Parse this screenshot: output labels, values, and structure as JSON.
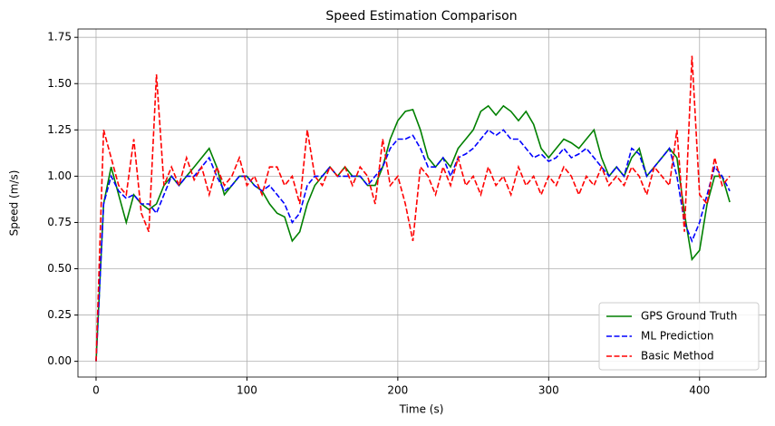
{
  "chart_data": {
    "type": "line",
    "title": "Speed Estimation Comparison",
    "x_label": "Time (s)",
    "y_label": "Speed (m/s)",
    "x": [
      0,
      5,
      10,
      15,
      20,
      25,
      30,
      35,
      40,
      45,
      50,
      55,
      60,
      65,
      70,
      75,
      80,
      85,
      90,
      95,
      100,
      105,
      110,
      115,
      120,
      125,
      130,
      135,
      140,
      145,
      150,
      155,
      160,
      165,
      170,
      175,
      180,
      185,
      190,
      195,
      200,
      205,
      210,
      215,
      220,
      225,
      230,
      235,
      240,
      245,
      250,
      255,
      260,
      265,
      270,
      275,
      280,
      285,
      290,
      295,
      300,
      305,
      310,
      315,
      320,
      325,
      330,
      335,
      340,
      345,
      350,
      355,
      360,
      365,
      370,
      375,
      380,
      385,
      390,
      395,
      400,
      405,
      410,
      415,
      420
    ],
    "series": [
      {
        "name": "GPS Ground Truth",
        "color": "#008000",
        "linestyle": "solid",
        "values": [
          0,
          0.85,
          1.05,
          0.9,
          0.75,
          0.9,
          0.85,
          0.82,
          0.85,
          0.95,
          1.0,
          0.95,
          1.0,
          1.05,
          1.1,
          1.15,
          1.05,
          0.9,
          0.95,
          1.0,
          1.0,
          0.95,
          0.92,
          0.85,
          0.8,
          0.78,
          0.65,
          0.7,
          0.85,
          0.95,
          1.0,
          1.05,
          1.0,
          1.05,
          1.0,
          1.0,
          0.95,
          0.95,
          1.05,
          1.2,
          1.3,
          1.35,
          1.36,
          1.25,
          1.1,
          1.05,
          1.1,
          1.05,
          1.15,
          1.2,
          1.25,
          1.35,
          1.38,
          1.33,
          1.38,
          1.35,
          1.3,
          1.35,
          1.28,
          1.15,
          1.1,
          1.15,
          1.2,
          1.18,
          1.15,
          1.2,
          1.25,
          1.1,
          1.0,
          1.05,
          1.0,
          1.1,
          1.15,
          1.0,
          1.05,
          1.1,
          1.15,
          1.1,
          0.8,
          0.55,
          0.6,
          0.85,
          1.0,
          1.0,
          0.86
        ]
      },
      {
        "name": "ML Prediction",
        "color": "#0000ff",
        "linestyle": "dashed",
        "values": [
          0,
          0.85,
          1.0,
          0.92,
          0.88,
          0.9,
          0.85,
          0.85,
          0.8,
          0.9,
          1.0,
          0.95,
          1.0,
          1.0,
          1.05,
          1.1,
          1.0,
          0.92,
          0.95,
          1.0,
          1.0,
          0.95,
          0.92,
          0.95,
          0.9,
          0.85,
          0.75,
          0.8,
          0.95,
          1.0,
          1.0,
          1.05,
          1.0,
          1.0,
          1.0,
          1.0,
          0.95,
          1.0,
          1.05,
          1.15,
          1.2,
          1.2,
          1.22,
          1.15,
          1.05,
          1.05,
          1.1,
          1.0,
          1.1,
          1.12,
          1.15,
          1.2,
          1.25,
          1.22,
          1.25,
          1.2,
          1.2,
          1.15,
          1.1,
          1.12,
          1.08,
          1.1,
          1.15,
          1.1,
          1.12,
          1.15,
          1.1,
          1.05,
          1.0,
          1.05,
          1.0,
          1.15,
          1.12,
          1.0,
          1.05,
          1.1,
          1.15,
          1.0,
          0.75,
          0.65,
          0.75,
          0.9,
          1.05,
          1.0,
          0.92
        ]
      },
      {
        "name": "Basic Method",
        "color": "#ff0000",
        "linestyle": "dashed",
        "values": [
          0,
          1.25,
          1.1,
          0.95,
          0.9,
          1.2,
          0.8,
          0.7,
          1.55,
          0.95,
          1.05,
          0.95,
          1.1,
          0.98,
          1.05,
          0.9,
          1.05,
          0.95,
          1.0,
          1.1,
          0.95,
          1.0,
          0.9,
          1.05,
          1.05,
          0.95,
          1.0,
          0.85,
          1.25,
          1.0,
          0.95,
          1.05,
          1.0,
          1.05,
          0.95,
          1.05,
          1.0,
          0.85,
          1.2,
          0.95,
          1.0,
          0.85,
          0.65,
          1.05,
          1.0,
          0.9,
          1.05,
          0.95,
          1.1,
          0.95,
          1.0,
          0.9,
          1.05,
          0.95,
          1.0,
          0.9,
          1.05,
          0.95,
          1.0,
          0.9,
          1.0,
          0.95,
          1.05,
          1.0,
          0.9,
          1.0,
          0.95,
          1.05,
          0.95,
          1.0,
          0.95,
          1.05,
          1.0,
          0.9,
          1.05,
          1.0,
          0.95,
          1.25,
          0.7,
          1.65,
          0.9,
          0.85,
          1.1,
          0.95,
          1.0
        ]
      }
    ],
    "xlim": [
      -12,
      444
    ],
    "xticks": [
      0,
      100,
      200,
      300,
      400
    ],
    "ylim": [
      -0.085,
      1.795
    ],
    "yticks": [
      {
        "value": 0,
        "label": "0.00"
      },
      {
        "value": 0.25,
        "label": "0.25"
      },
      {
        "value": 0.5,
        "label": "0.50"
      },
      {
        "value": 0.75,
        "label": "0.75"
      },
      {
        "value": 1,
        "label": "1.00"
      },
      {
        "value": 1.25,
        "label": "1.25"
      },
      {
        "value": 1.5,
        "label": "1.50"
      },
      {
        "value": 1.75,
        "label": "1.75"
      }
    ],
    "grid": true,
    "legend": "lower right"
  }
}
